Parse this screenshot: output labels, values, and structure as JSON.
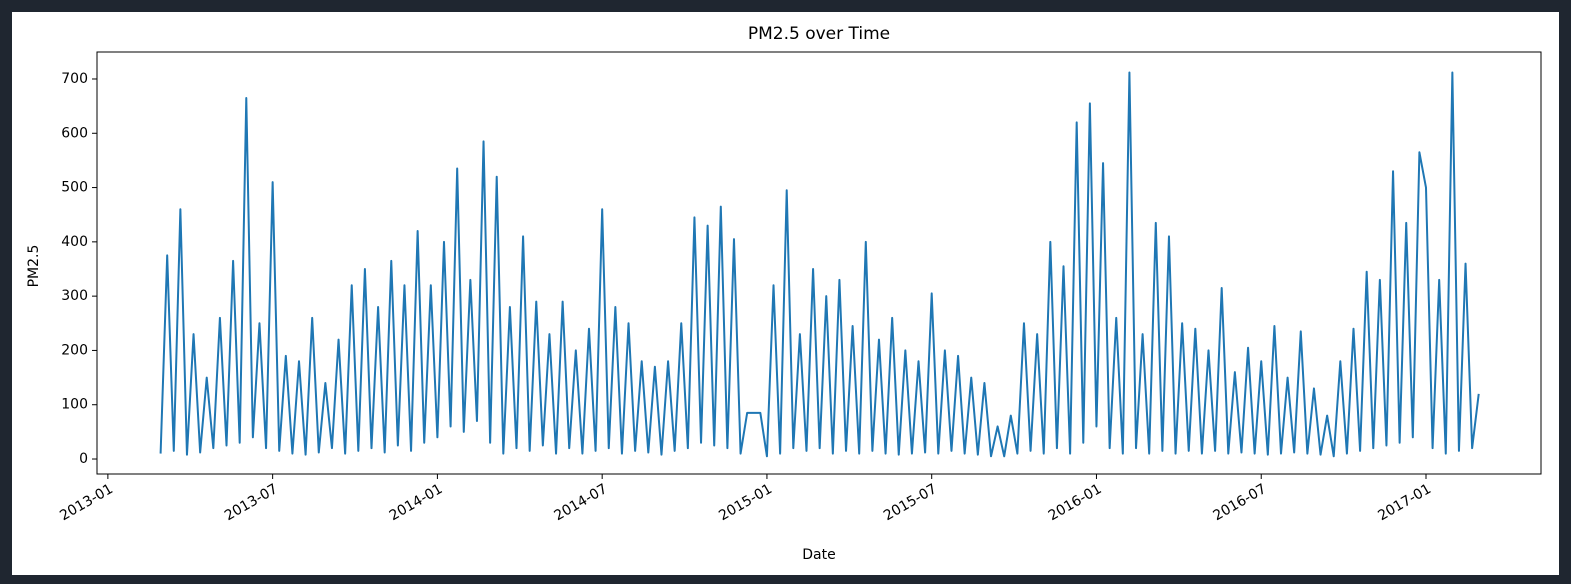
{
  "chart_data": {
    "type": "line",
    "title": "PM2.5 over Time",
    "xlabel": "Date",
    "ylabel": "PM2.5",
    "x": [
      2013.16,
      2013.18,
      2013.2,
      2013.22,
      2013.24,
      2013.26,
      2013.28,
      2013.3,
      2013.32,
      2013.34,
      2013.36,
      2013.38,
      2013.4,
      2013.42,
      2013.44,
      2013.46,
      2013.48,
      2013.5,
      2013.52,
      2013.54,
      2013.56,
      2013.58,
      2013.6,
      2013.62,
      2013.64,
      2013.66,
      2013.68,
      2013.7,
      2013.72,
      2013.74,
      2013.76,
      2013.78,
      2013.8,
      2013.82,
      2013.84,
      2013.86,
      2013.88,
      2013.9,
      2013.92,
      2013.94,
      2013.96,
      2013.98,
      2014.0,
      2014.02,
      2014.04,
      2014.06,
      2014.08,
      2014.1,
      2014.12,
      2014.14,
      2014.16,
      2014.18,
      2014.2,
      2014.22,
      2014.24,
      2014.26,
      2014.28,
      2014.3,
      2014.32,
      2014.34,
      2014.36,
      2014.38,
      2014.4,
      2014.42,
      2014.44,
      2014.46,
      2014.48,
      2014.5,
      2014.52,
      2014.54,
      2014.56,
      2014.58,
      2014.6,
      2014.62,
      2014.64,
      2014.66,
      2014.68,
      2014.7,
      2014.72,
      2014.74,
      2014.76,
      2014.78,
      2014.8,
      2014.82,
      2014.84,
      2014.86,
      2014.88,
      2014.9,
      2014.92,
      2014.94,
      2014.96,
      2014.98,
      2015.0,
      2015.02,
      2015.04,
      2015.06,
      2015.08,
      2015.1,
      2015.12,
      2015.14,
      2015.16,
      2015.18,
      2015.2,
      2015.22,
      2015.24,
      2015.26,
      2015.28,
      2015.3,
      2015.32,
      2015.34,
      2015.36,
      2015.38,
      2015.4,
      2015.42,
      2015.44,
      2015.46,
      2015.48,
      2015.5,
      2015.52,
      2015.54,
      2015.56,
      2015.58,
      2015.6,
      2015.62,
      2015.64,
      2015.66,
      2015.68,
      2015.7,
      2015.72,
      2015.74,
      2015.76,
      2015.78,
      2015.8,
      2015.82,
      2015.84,
      2015.86,
      2015.88,
      2015.9,
      2015.92,
      2015.94,
      2015.96,
      2015.98,
      2016.0,
      2016.02,
      2016.04,
      2016.06,
      2016.08,
      2016.1,
      2016.12,
      2016.14,
      2016.16,
      2016.18,
      2016.2,
      2016.22,
      2016.24,
      2016.26,
      2016.28,
      2016.3,
      2016.32,
      2016.34,
      2016.36,
      2016.38,
      2016.4,
      2016.42,
      2016.44,
      2016.46,
      2016.48,
      2016.5,
      2016.52,
      2016.54,
      2016.56,
      2016.58,
      2016.6,
      2016.62,
      2016.64,
      2016.66,
      2016.68,
      2016.7,
      2016.72,
      2016.74,
      2016.76,
      2016.78,
      2016.8,
      2016.82,
      2016.84,
      2016.86,
      2016.88,
      2016.9,
      2016.92,
      2016.94,
      2016.96,
      2016.98,
      2017.0,
      2017.02,
      2017.04,
      2017.06,
      2017.08,
      2017.1,
      2017.12,
      2017.14,
      2017.16
    ],
    "series": [
      {
        "color": "#1f77b4",
        "values": [
          10,
          375,
          15,
          460,
          8,
          230,
          12,
          150,
          20,
          260,
          25,
          365,
          30,
          665,
          40,
          250,
          20,
          510,
          15,
          190,
          10,
          180,
          8,
          260,
          12,
          140,
          20,
          220,
          10,
          320,
          15,
          350,
          20,
          280,
          12,
          365,
          25,
          320,
          15,
          420,
          30,
          320,
          40,
          400,
          60,
          535,
          50,
          330,
          70,
          585,
          30,
          520,
          10,
          280,
          20,
          410,
          15,
          290,
          25,
          230,
          10,
          290,
          20,
          200,
          10,
          240,
          15,
          460,
          20,
          280,
          10,
          250,
          15,
          180,
          12,
          170,
          8,
          180,
          15,
          250,
          20,
          445,
          30,
          430,
          25,
          465,
          20,
          405,
          10,
          85,
          85,
          85,
          5,
          320,
          10,
          495,
          20,
          230,
          15,
          350,
          20,
          300,
          10,
          330,
          15,
          245,
          10,
          400,
          15,
          220,
          10,
          260,
          8,
          200,
          10,
          180,
          12,
          305,
          10,
          200,
          15,
          190,
          10,
          150,
          8,
          140,
          5,
          60,
          5,
          80,
          10,
          250,
          15,
          230,
          10,
          400,
          20,
          355,
          10,
          620,
          30,
          655,
          60,
          545,
          20,
          260,
          10,
          712,
          20,
          230,
          10,
          435,
          15,
          410,
          10,
          250,
          15,
          240,
          10,
          200,
          15,
          315,
          10,
          160,
          12,
          205,
          10,
          180,
          8,
          245,
          10,
          150,
          12,
          235,
          10,
          130,
          8,
          80,
          5,
          180,
          10,
          240,
          15,
          345,
          20,
          330,
          25,
          530,
          30,
          435,
          40,
          565,
          500,
          20,
          330,
          10,
          712,
          15,
          360,
          20,
          120
        ]
      }
    ],
    "xlim": [
      2012.967,
      2017.349
    ],
    "ylim": [
      -27.6,
      749.7
    ],
    "xticks": [
      {
        "value": 2013.0,
        "label": "2013-01"
      },
      {
        "value": 2013.5,
        "label": "2013-07"
      },
      {
        "value": 2014.0,
        "label": "2014-01"
      },
      {
        "value": 2014.5,
        "label": "2014-07"
      },
      {
        "value": 2015.0,
        "label": "2015-01"
      },
      {
        "value": 2015.5,
        "label": "2015-07"
      },
      {
        "value": 2016.0,
        "label": "2016-01"
      },
      {
        "value": 2016.5,
        "label": "2016-07"
      },
      {
        "value": 2017.0,
        "label": "2017-01"
      }
    ],
    "yticks": [
      0,
      100,
      200,
      300,
      400,
      500,
      600,
      700
    ]
  }
}
